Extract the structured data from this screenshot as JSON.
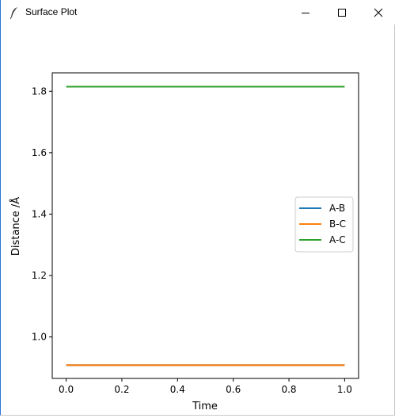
{
  "window": {
    "title": "Surface Plot",
    "icons": {
      "app": "feather-icon",
      "minimize": "minimize-icon",
      "maximize": "maximize-icon",
      "close": "close-icon"
    }
  },
  "chart_data": {
    "type": "line",
    "title": "",
    "xlabel": "Time",
    "ylabel": "Distance /Å",
    "xlim": [
      -0.05,
      1.05
    ],
    "ylim": [
      0.865,
      1.86
    ],
    "xticks": [
      0.0,
      0.2,
      0.4,
      0.6,
      0.8,
      1.0
    ],
    "xtick_labels": [
      "0.0",
      "0.2",
      "0.4",
      "0.6",
      "0.8",
      "1.0"
    ],
    "yticks": [
      1.0,
      1.2,
      1.4,
      1.6,
      1.8
    ],
    "ytick_labels": [
      "1.0",
      "1.2",
      "1.4",
      "1.6",
      "1.8"
    ],
    "grid": false,
    "legend_position": "center-right",
    "series": [
      {
        "name": "A-B",
        "color": "#1f77b4",
        "x": [
          0.0,
          1.0
        ],
        "y": [
          0.908,
          0.908
        ]
      },
      {
        "name": "B-C",
        "color": "#ff7f0e",
        "x": [
          0.0,
          1.0
        ],
        "y": [
          0.908,
          0.908
        ]
      },
      {
        "name": "A-C",
        "color": "#2ca02c",
        "x": [
          0.0,
          1.0
        ],
        "y": [
          1.815,
          1.815
        ]
      }
    ]
  }
}
